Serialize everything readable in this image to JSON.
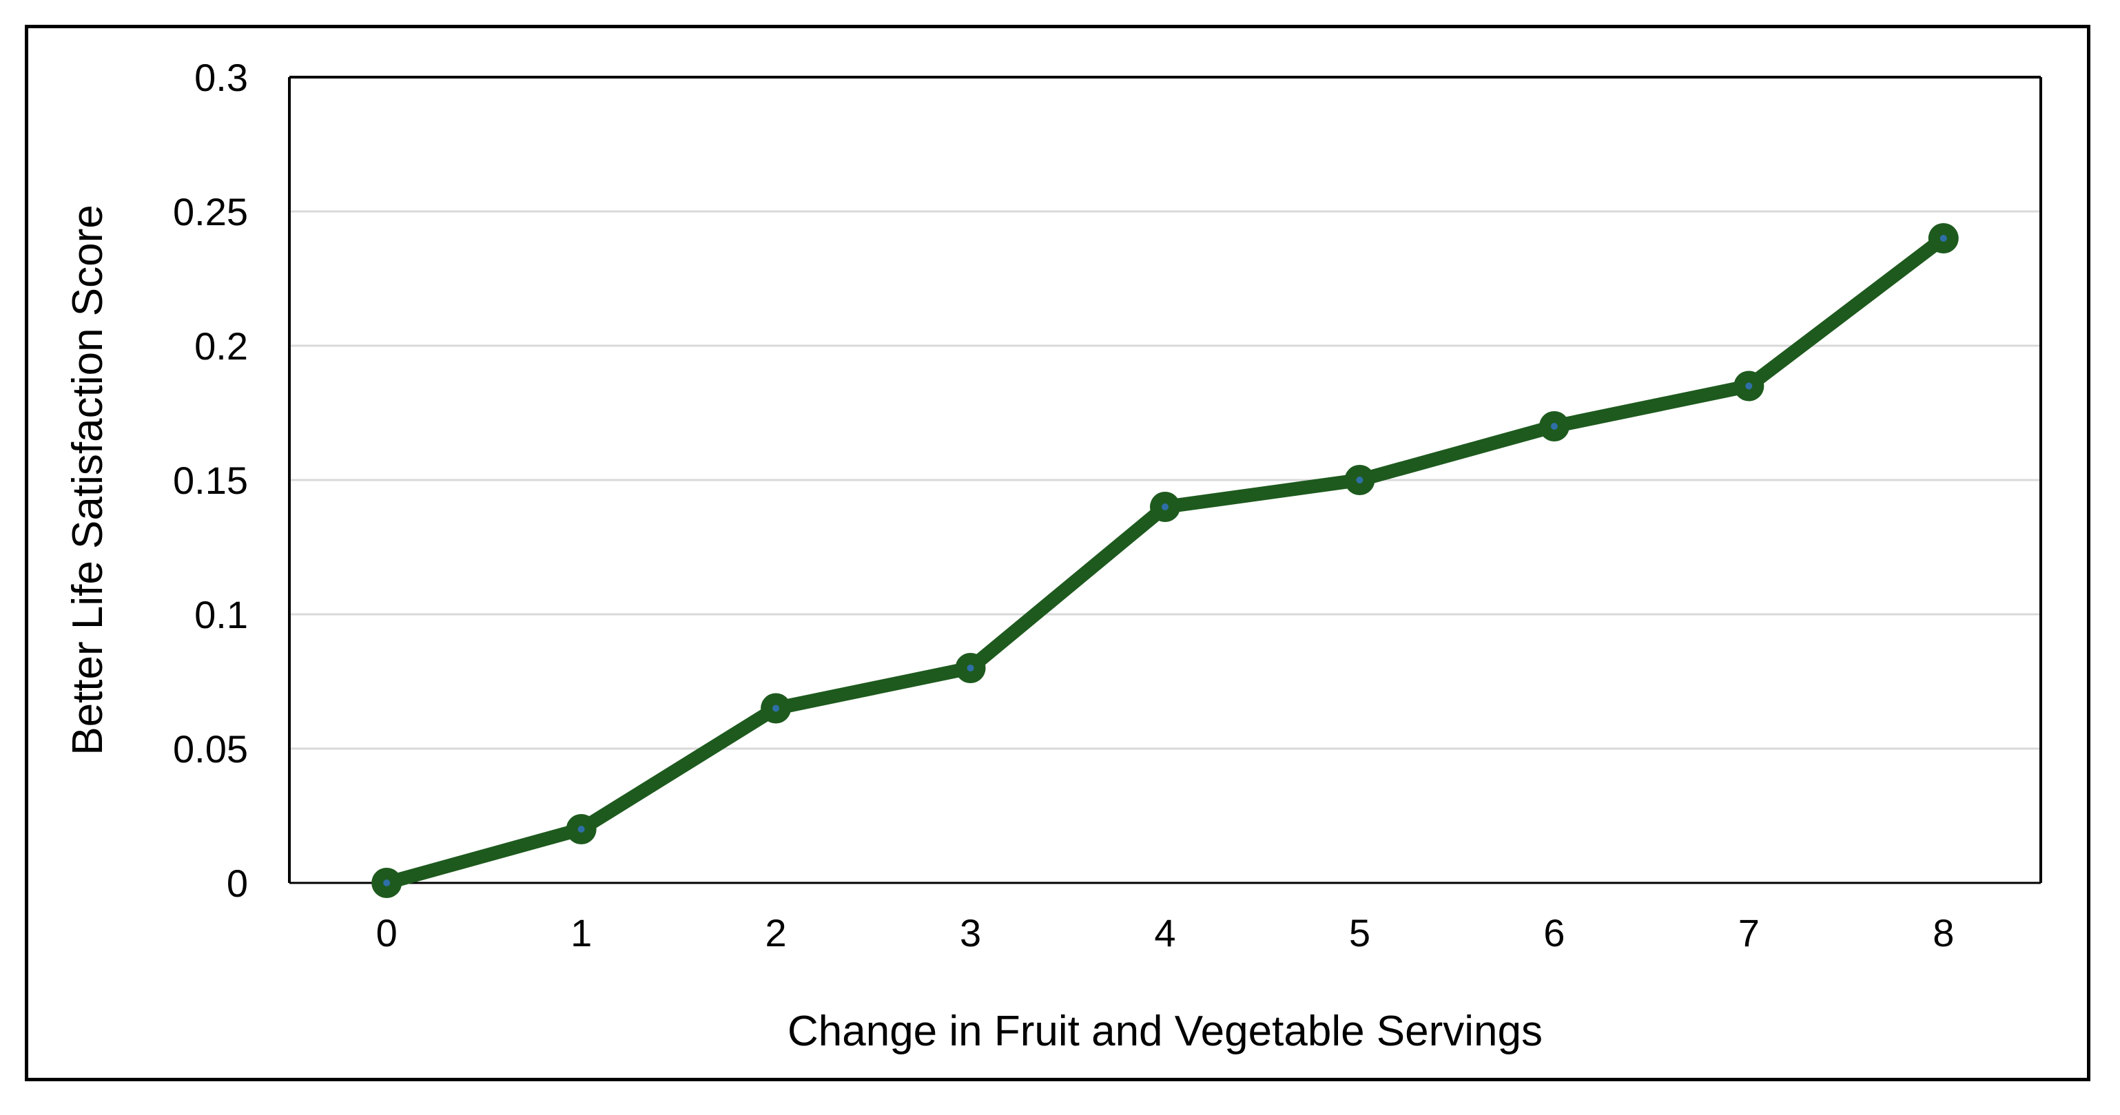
{
  "chart_data": {
    "type": "line",
    "title": "",
    "xlabel": "Change in Fruit and Vegetable Servings",
    "ylabel": "Better Life Satisfaction Score",
    "x": [
      0,
      1,
      2,
      3,
      4,
      5,
      6,
      7,
      8
    ],
    "x_tick_labels": [
      "0",
      "1",
      "2",
      "3",
      "4",
      "5",
      "6",
      "7",
      "8"
    ],
    "y_tick_labels": [
      "0",
      "0.05",
      "0.1",
      "0.15",
      "0.2",
      "0.25",
      "0.3"
    ],
    "y_ticks": [
      0,
      0.05,
      0.1,
      0.15,
      0.2,
      0.25,
      0.3
    ],
    "xlim": [
      -0.5,
      8.5
    ],
    "ylim": [
      0,
      0.3
    ],
    "series": [
      {
        "values": [
          0,
          0.02,
          0.065,
          0.08,
          0.14,
          0.15,
          0.17,
          0.185,
          0.24
        ],
        "color": "#1e5a1e",
        "marker_center_color": "#2f6fa8"
      }
    ],
    "grid": true,
    "grid_color": "#d9d9d9",
    "legend": "none"
  }
}
